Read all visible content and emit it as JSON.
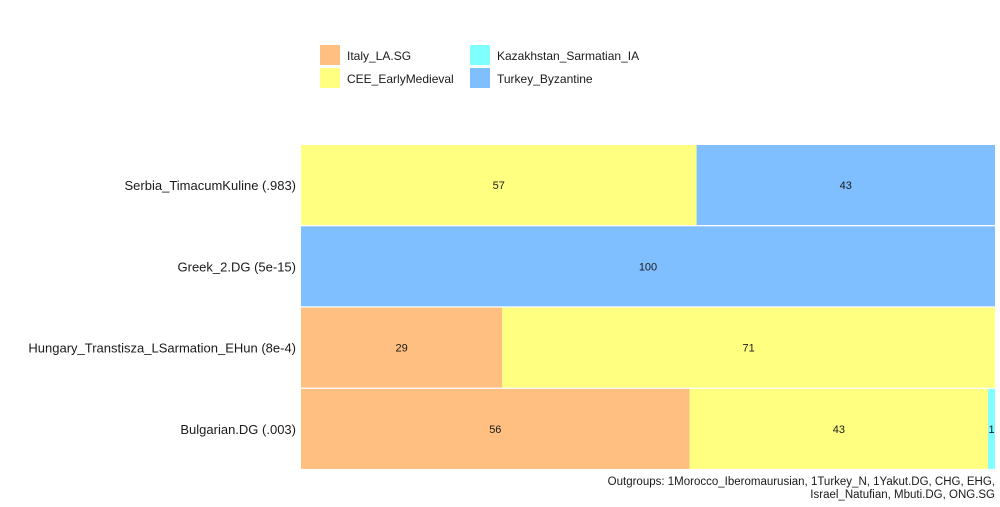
{
  "chart_data": {
    "type": "bar",
    "orientation": "horizontal",
    "stacked": true,
    "title": "",
    "xlabel": "",
    "ylabel": "",
    "xlim": [
      0,
      100
    ],
    "grid": false,
    "legend_position": "top",
    "legend": [
      {
        "name": "Italy_LA.SG",
        "color": "#FFBF80"
      },
      {
        "name": "CEE_EarlyMedieval",
        "color": "#FFFF80"
      },
      {
        "name": "Kazakhstan_Sarmatian_IA",
        "color": "#80FFFF"
      },
      {
        "name": "Turkey_Byzantine",
        "color": "#80BFFF"
      }
    ],
    "categories": [
      "Serbia_TimacumKuline (.983)",
      "Greek_2.DG (5e-15)",
      "Hungary_Transtisza_LSarmation_EHun (8e-4)",
      "Bulgarian.DG (.003)"
    ],
    "series": [
      {
        "name": "Italy_LA.SG",
        "values": [
          0,
          0,
          29,
          56
        ]
      },
      {
        "name": "CEE_EarlyMedieval",
        "values": [
          57,
          0,
          71,
          43
        ]
      },
      {
        "name": "Kazakhstan_Sarmatian_IA",
        "values": [
          0,
          0,
          0,
          1
        ]
      },
      {
        "name": "Turkey_Byzantine",
        "values": [
          43,
          100,
          0,
          0
        ]
      }
    ],
    "annotation": [
      "Outgroups: 1Morocco_Iberomaurusian, 1Turkey_N, 1Yakut.DG, CHG, EHG,",
      "Israel_Natufian, Mbuti.DG, ONG.SG"
    ]
  }
}
